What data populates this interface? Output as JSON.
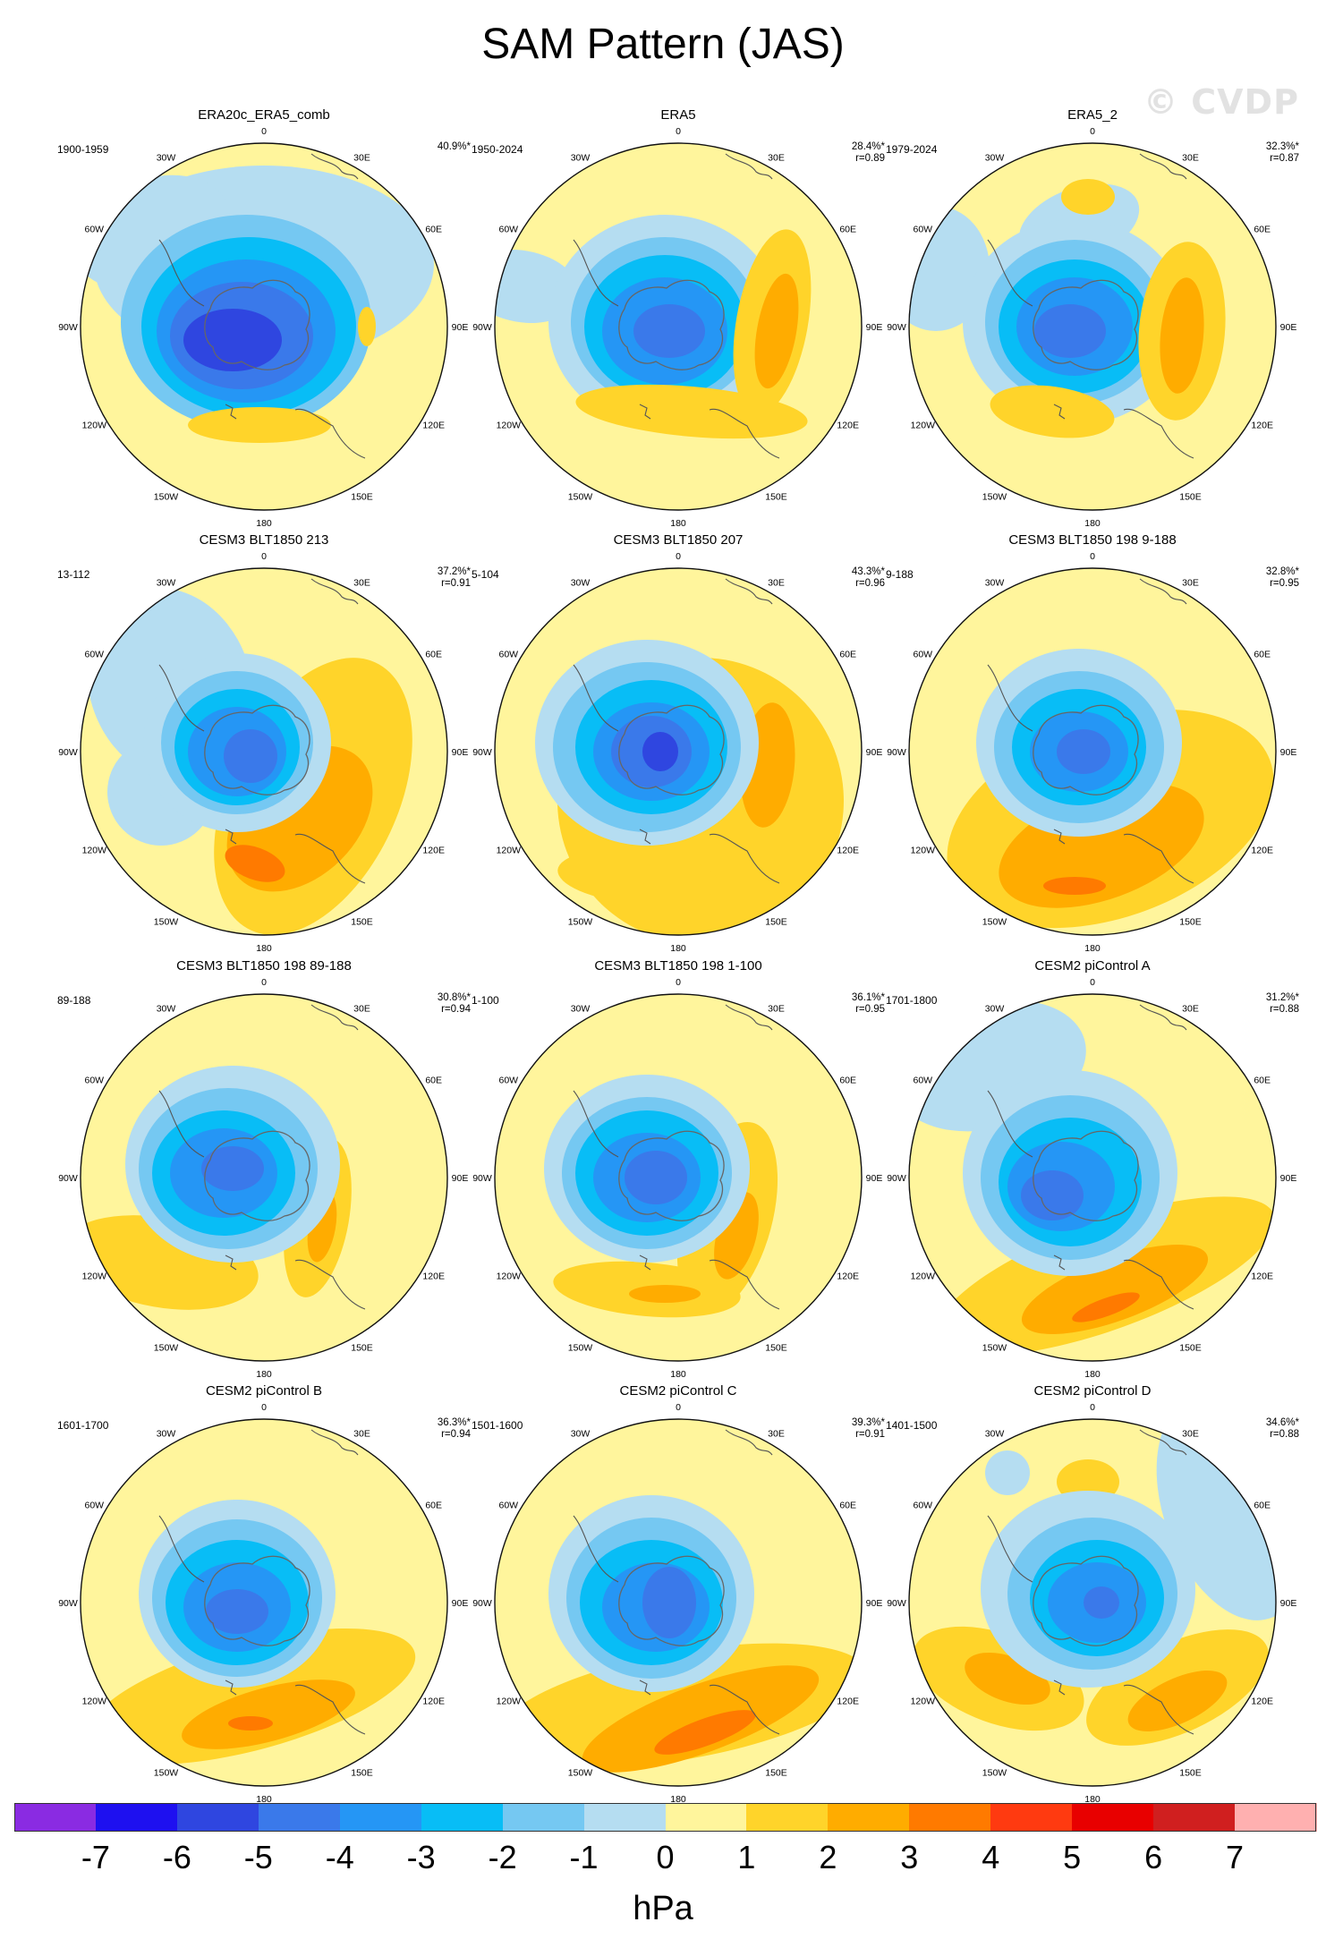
{
  "title": "SAM Pattern (JAS)",
  "watermark": "© CVDP",
  "lon_labels": [
    "0",
    "30E",
    "60E",
    "90E",
    "120E",
    "150E",
    "180",
    "150W",
    "120W",
    "90W",
    "60W",
    "30W"
  ],
  "colorbar": {
    "units": "hPa",
    "ticks": [
      "-7",
      "-6",
      "-5",
      "-4",
      "-3",
      "-2",
      "-1",
      "0",
      "1",
      "2",
      "3",
      "4",
      "5",
      "6",
      "7"
    ],
    "colors": [
      "#8a2be2",
      "#1e10f0",
      "#2f46e0",
      "#3a79ea",
      "#2596f5",
      "#08bdf6",
      "#75c8f2",
      "#b5ddf1",
      "#fff59c",
      "#ffd42a",
      "#ffac00",
      "#ff7a00",
      "#ff3a10",
      "#e80000",
      "#d01f1f",
      "#ffb0b0"
    ]
  },
  "panels": [
    {
      "title": "ERA20c_ERA5_comb",
      "period": "1900-1959",
      "pct": "40.9%*",
      "r": ""
    },
    {
      "title": "ERA5",
      "period": "1950-2024",
      "pct": "28.4%*",
      "r": "r=0.89"
    },
    {
      "title": "ERA5_2",
      "period": "1979-2024",
      "pct": "32.3%*",
      "r": "r=0.87"
    },
    {
      "title": "CESM3 BLT1850 213",
      "period": "13-112",
      "pct": "37.2%*",
      "r": "r=0.91"
    },
    {
      "title": "CESM3 BLT1850 207",
      "period": "5-104",
      "pct": "43.3%*",
      "r": "r=0.96"
    },
    {
      "title": "CESM3 BLT1850 198 9-188",
      "period": "9-188",
      "pct": "32.8%*",
      "r": "r=0.95"
    },
    {
      "title": "CESM3 BLT1850 198 89-188",
      "period": "89-188",
      "pct": "30.8%*",
      "r": "r=0.94"
    },
    {
      "title": "CESM3 BLT1850 198 1-100",
      "period": "1-100",
      "pct": "36.1%*",
      "r": "r=0.95"
    },
    {
      "title": "CESM2 piControl A",
      "period": "1701-1800",
      "pct": "31.2%*",
      "r": "r=0.88"
    },
    {
      "title": "CESM2 piControl B",
      "period": "1601-1700",
      "pct": "36.3%*",
      "r": "r=0.94"
    },
    {
      "title": "CESM2 piControl C",
      "period": "1501-1600",
      "pct": "39.3%*",
      "r": "r=0.91"
    },
    {
      "title": "CESM2 piControl D",
      "period": "1401-1500",
      "pct": "34.6%*",
      "r": "r=0.88"
    }
  ]
}
